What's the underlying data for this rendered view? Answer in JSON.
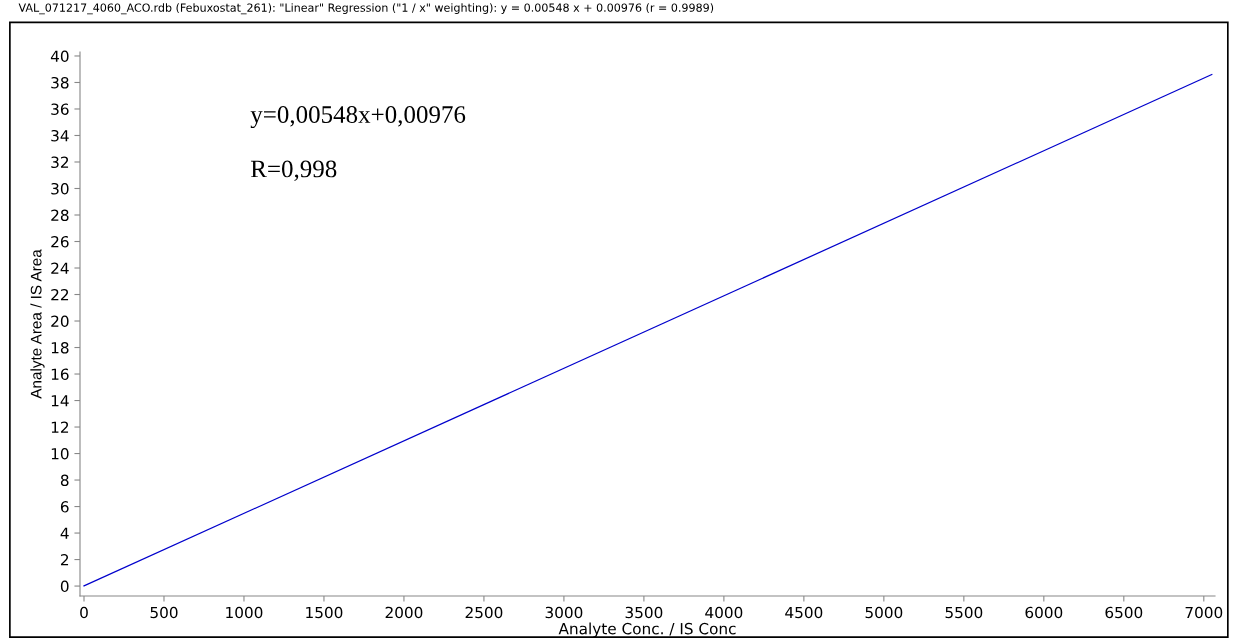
{
  "chart_data": {
    "type": "line",
    "title": "VAL_071217_4060_ACO.rdb (Febuxostat_261): \"Linear\" Regression (\"1 / x\" weighting): y = 0.00548 x + 0.00976 (r = 0.9989)",
    "xlabel": "Analyte Conc. / IS Conc",
    "ylabel": "Analyte Area / IS Area",
    "annotations": [
      "y=0,00548x+0,00976",
      "R=0,998"
    ],
    "series": [
      {
        "color": "#0000cc",
        "x": [
          0,
          7050
        ],
        "values": [
          0.01,
          38.6
        ]
      }
    ],
    "xlim": [
      -25,
      7070
    ],
    "ylim": [
      -0.75,
      40.3
    ],
    "xticks": [
      0,
      500,
      1000,
      1500,
      2000,
      2500,
      3000,
      3500,
      4000,
      4500,
      5000,
      5500,
      6000,
      6500,
      7000
    ],
    "yticks": [
      0,
      2,
      4,
      6,
      8,
      10,
      12,
      14,
      16,
      18,
      20,
      22,
      24,
      26,
      28,
      30,
      32,
      34,
      36,
      38,
      40
    ],
    "grid": false,
    "legend": false,
    "marker": "none",
    "line_style": "solid"
  }
}
